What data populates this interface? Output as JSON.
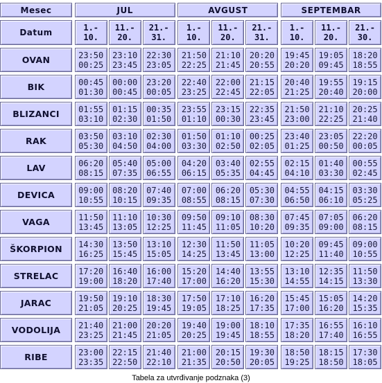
{
  "table": {
    "header_label": "Mesec",
    "datum_label": "Datum",
    "months": [
      "JUL",
      "AVGUST",
      "SEPTEMBAR"
    ],
    "decades": [
      [
        "1.-",
        "10."
      ],
      [
        "11.-",
        "20."
      ],
      [
        "21.-",
        "31."
      ],
      [
        "1.-",
        "10."
      ],
      [
        "11.-",
        "20."
      ],
      [
        "21.-",
        "31."
      ],
      [
        "1.-",
        "10."
      ],
      [
        "11.-",
        "20."
      ],
      [
        "21.-",
        "30."
      ]
    ],
    "rows": [
      {
        "sign": "OVAN",
        "times": [
          [
            "23:50",
            "00:25"
          ],
          [
            "23:10",
            "23:45"
          ],
          [
            "22:30",
            "23:05"
          ],
          [
            "21:50",
            "22:25"
          ],
          [
            "21:10",
            "21:45"
          ],
          [
            "20:20",
            "20:55"
          ],
          [
            "19:45",
            "20:20"
          ],
          [
            "19:05",
            "09:45"
          ],
          [
            "18:20",
            "18:55"
          ]
        ]
      },
      {
        "sign": "BIK",
        "times": [
          [
            "00:45",
            "01:30"
          ],
          [
            "00:00",
            "00:45"
          ],
          [
            "23:20",
            "00:05"
          ],
          [
            "22:40",
            "23:25"
          ],
          [
            "22:00",
            "22:45"
          ],
          [
            "21:15",
            "22:05"
          ],
          [
            "20:40",
            "21:25"
          ],
          [
            "19:55",
            "20:40"
          ],
          [
            "19:15",
            "20:00"
          ]
        ]
      },
      {
        "sign": "BLIZANCI",
        "times": [
          [
            "01:55",
            "03:10"
          ],
          [
            "01:15",
            "02:30"
          ],
          [
            "00:35",
            "01:50"
          ],
          [
            "23:55",
            "01:10"
          ],
          [
            "23:15",
            "00:30"
          ],
          [
            "22:35",
            "23:45"
          ],
          [
            "21:50",
            "23:00"
          ],
          [
            "21:10",
            "22:25"
          ],
          [
            "20:25",
            "21:40"
          ]
        ]
      },
      {
        "sign": "RAK",
        "times": [
          [
            "03:50",
            "05:30"
          ],
          [
            "03:10",
            "04:50"
          ],
          [
            "02:30",
            "04:00"
          ],
          [
            "01:50",
            "03:30"
          ],
          [
            "01:10",
            "02:50"
          ],
          [
            "00:25",
            "02:05"
          ],
          [
            "23:40",
            "01:25"
          ],
          [
            "23:05",
            "00:50"
          ],
          [
            "22:20",
            "00:05"
          ]
        ]
      },
      {
        "sign": "LAV",
        "times": [
          [
            "06:20",
            "08:15"
          ],
          [
            "05:40",
            "07:35"
          ],
          [
            "05:00",
            "06:55"
          ],
          [
            "04:20",
            "06:15"
          ],
          [
            "03:40",
            "05:35"
          ],
          [
            "02:55",
            "04:45"
          ],
          [
            "02:15",
            "04:10"
          ],
          [
            "01:40",
            "03:30"
          ],
          [
            "00:55",
            "02:45"
          ]
        ]
      },
      {
        "sign": "DEVICA",
        "times": [
          [
            "09:00",
            "10:55"
          ],
          [
            "08:20",
            "10:15"
          ],
          [
            "07:40",
            "09:35"
          ],
          [
            "07:00",
            "08:55"
          ],
          [
            "06:20",
            "08:15"
          ],
          [
            "05:30",
            "07:30"
          ],
          [
            "04:55",
            "06:50"
          ],
          [
            "04:15",
            "06:10"
          ],
          [
            "03:30",
            "05:25"
          ]
        ]
      },
      {
        "sign": "VAGA",
        "times": [
          [
            "11:50",
            "13:45"
          ],
          [
            "11:10",
            "13:05"
          ],
          [
            "10:30",
            "12:25"
          ],
          [
            "09:50",
            "11:45"
          ],
          [
            "09:10",
            "11:05"
          ],
          [
            "08:30",
            "10:20"
          ],
          [
            "07:45",
            "09:35"
          ],
          [
            "07:05",
            "09:00"
          ],
          [
            "06:20",
            "08:15"
          ]
        ]
      },
      {
        "sign": "ŠKORPION",
        "times": [
          [
            "14:30",
            "16:25"
          ],
          [
            "13:50",
            "15:45"
          ],
          [
            "13:10",
            "15:05"
          ],
          [
            "12:30",
            "14:25"
          ],
          [
            "11:50",
            "13:45"
          ],
          [
            "11:05",
            "13:00"
          ],
          [
            "10:20",
            "12:25"
          ],
          [
            "09:45",
            "11:40"
          ],
          [
            "09:00",
            "10:55"
          ]
        ]
      },
      {
        "sign": "STRELAC",
        "times": [
          [
            "17:20",
            "19:00"
          ],
          [
            "16:40",
            "18:20"
          ],
          [
            "16:00",
            "17:40"
          ],
          [
            "15:20",
            "17:00"
          ],
          [
            "14:40",
            "16:20"
          ],
          [
            "13:55",
            "15:30"
          ],
          [
            "13:10",
            "14:55"
          ],
          [
            "12:35",
            "14:15"
          ],
          [
            "11:50",
            "13:30"
          ]
        ]
      },
      {
        "sign": "JARAC",
        "times": [
          [
            "19:50",
            "21:05"
          ],
          [
            "19:10",
            "20:25"
          ],
          [
            "18:30",
            "19:45"
          ],
          [
            "17:50",
            "19:05"
          ],
          [
            "17:10",
            "18:25"
          ],
          [
            "16:20",
            "17:35"
          ],
          [
            "15:45",
            "17:00"
          ],
          [
            "15:05",
            "16:20"
          ],
          [
            "14:20",
            "15:35"
          ]
        ]
      },
      {
        "sign": "VODOLIJA",
        "times": [
          [
            "21:40",
            "23:25"
          ],
          [
            "21:00",
            "21:45"
          ],
          [
            "20:20",
            "21:05"
          ],
          [
            "19:40",
            "20:25"
          ],
          [
            "19:00",
            "19:45"
          ],
          [
            "18:10",
            "18:55"
          ],
          [
            "17:35",
            "18:20"
          ],
          [
            "16:55",
            "17:40"
          ],
          [
            "16:10",
            "16:55"
          ]
        ]
      },
      {
        "sign": "RIBE",
        "times": [
          [
            "23:00",
            "23:35"
          ],
          [
            "22:15",
            "22:50"
          ],
          [
            "21:40",
            "22:10"
          ],
          [
            "21:00",
            "21:35"
          ],
          [
            "20:15",
            "20:50"
          ],
          [
            "19:30",
            "20:05"
          ],
          [
            "18:50",
            "19:25"
          ],
          [
            "18:15",
            "18:50"
          ],
          [
            "17:30",
            "18:05"
          ]
        ]
      }
    ]
  },
  "caption": "Tabela za utvrđivanje podznaka (3)"
}
